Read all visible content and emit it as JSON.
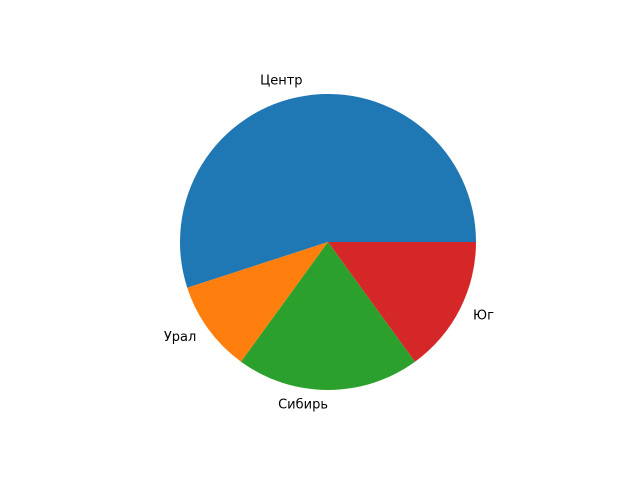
{
  "chart_data": {
    "type": "pie",
    "categories": [
      "Центр",
      "Урал",
      "Сибирь",
      "Юг"
    ],
    "values": [
      55,
      10,
      20,
      15
    ],
    "colors": [
      "#1f77b4",
      "#ff7f0e",
      "#2ca02c",
      "#d62728"
    ],
    "start_angle": 0,
    "direction": "counterclockwise",
    "title": "",
    "legend": "none"
  }
}
